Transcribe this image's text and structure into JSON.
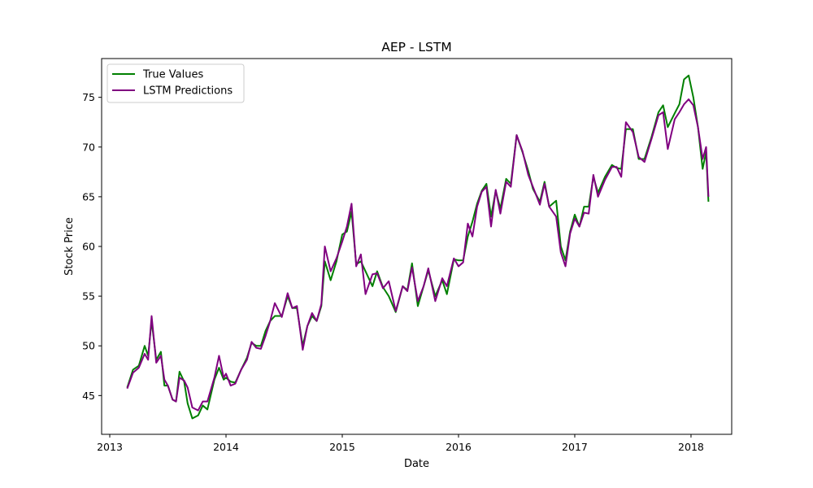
{
  "chart_data": {
    "type": "line",
    "title": "AEP - LSTM",
    "xlabel": "Date",
    "ylabel": "Stock Price",
    "xlim": [
      2012.93,
      2018.35
    ],
    "ylim": [
      41.1,
      78.9
    ],
    "xticks": [
      2013,
      2014,
      2015,
      2016,
      2017,
      2018
    ],
    "yticks": [
      45,
      50,
      55,
      60,
      65,
      70,
      75
    ],
    "grid": false,
    "legend_position": "top-left",
    "series": [
      {
        "name": "True Values",
        "color": "#008000",
        "points": [
          [
            2013.15,
            45.8
          ],
          [
            2013.2,
            47.6
          ],
          [
            2013.25,
            48.0
          ],
          [
            2013.3,
            50.0
          ],
          [
            2013.33,
            49.0
          ],
          [
            2013.36,
            52.5
          ],
          [
            2013.4,
            48.6
          ],
          [
            2013.44,
            49.4
          ],
          [
            2013.47,
            46.0
          ],
          [
            2013.5,
            46.0
          ],
          [
            2013.54,
            44.6
          ],
          [
            2013.57,
            44.4
          ],
          [
            2013.6,
            47.4
          ],
          [
            2013.64,
            46.4
          ],
          [
            2013.67,
            44.2
          ],
          [
            2013.71,
            42.7
          ],
          [
            2013.76,
            43.0
          ],
          [
            2013.8,
            44.0
          ],
          [
            2013.84,
            43.6
          ],
          [
            2013.9,
            46.6
          ],
          [
            2013.94,
            47.8
          ],
          [
            2013.98,
            46.6
          ],
          [
            2014.0,
            46.8
          ],
          [
            2014.04,
            46.4
          ],
          [
            2014.08,
            46.3
          ],
          [
            2014.13,
            47.6
          ],
          [
            2014.18,
            48.8
          ],
          [
            2014.22,
            50.3
          ],
          [
            2014.26,
            50.0
          ],
          [
            2014.3,
            50.0
          ],
          [
            2014.34,
            51.5
          ],
          [
            2014.38,
            52.5
          ],
          [
            2014.42,
            53.0
          ],
          [
            2014.48,
            53.0
          ],
          [
            2014.53,
            55.0
          ],
          [
            2014.57,
            53.8
          ],
          [
            2014.61,
            53.8
          ],
          [
            2014.66,
            50.0
          ],
          [
            2014.7,
            52.0
          ],
          [
            2014.74,
            53.0
          ],
          [
            2014.78,
            52.5
          ],
          [
            2014.82,
            54.0
          ],
          [
            2014.85,
            58.5
          ],
          [
            2014.9,
            56.6
          ],
          [
            2014.95,
            58.5
          ],
          [
            2015.0,
            61.2
          ],
          [
            2015.04,
            61.5
          ],
          [
            2015.08,
            63.5
          ],
          [
            2015.12,
            58.2
          ],
          [
            2015.16,
            58.5
          ],
          [
            2015.2,
            57.5
          ],
          [
            2015.26,
            56.0
          ],
          [
            2015.3,
            57.5
          ],
          [
            2015.35,
            55.9
          ],
          [
            2015.4,
            55.0
          ],
          [
            2015.46,
            53.4
          ],
          [
            2015.52,
            56.0
          ],
          [
            2015.56,
            55.6
          ],
          [
            2015.6,
            58.3
          ],
          [
            2015.65,
            54.0
          ],
          [
            2015.7,
            56.0
          ],
          [
            2015.74,
            57.6
          ],
          [
            2015.8,
            55.0
          ],
          [
            2015.86,
            56.6
          ],
          [
            2015.9,
            55.2
          ],
          [
            2015.96,
            58.7
          ],
          [
            2016.0,
            58.6
          ],
          [
            2016.04,
            58.6
          ],
          [
            2016.08,
            61.0
          ],
          [
            2016.12,
            62.5
          ],
          [
            2016.16,
            64.3
          ],
          [
            2016.2,
            65.6
          ],
          [
            2016.24,
            66.3
          ],
          [
            2016.28,
            63.0
          ],
          [
            2016.32,
            65.6
          ],
          [
            2016.36,
            63.8
          ],
          [
            2016.41,
            66.8
          ],
          [
            2016.45,
            66.3
          ],
          [
            2016.5,
            71.2
          ],
          [
            2016.55,
            69.5
          ],
          [
            2016.6,
            67.6
          ],
          [
            2016.64,
            65.8
          ],
          [
            2016.7,
            64.5
          ],
          [
            2016.74,
            66.5
          ],
          [
            2016.78,
            64.0
          ],
          [
            2016.84,
            64.6
          ],
          [
            2016.88,
            60.0
          ],
          [
            2016.92,
            58.6
          ],
          [
            2016.96,
            61.5
          ],
          [
            2017.0,
            63.2
          ],
          [
            2017.04,
            62.0
          ],
          [
            2017.08,
            64.0
          ],
          [
            2017.12,
            64.0
          ],
          [
            2017.16,
            67.0
          ],
          [
            2017.2,
            65.4
          ],
          [
            2017.26,
            67.0
          ],
          [
            2017.32,
            68.2
          ],
          [
            2017.36,
            67.9
          ],
          [
            2017.4,
            67.8
          ],
          [
            2017.44,
            71.8
          ],
          [
            2017.5,
            71.8
          ],
          [
            2017.55,
            68.8
          ],
          [
            2017.6,
            68.8
          ],
          [
            2017.66,
            71.0
          ],
          [
            2017.72,
            73.5
          ],
          [
            2017.76,
            74.2
          ],
          [
            2017.8,
            72.0
          ],
          [
            2017.86,
            73.4
          ],
          [
            2017.9,
            74.3
          ],
          [
            2017.94,
            76.8
          ],
          [
            2017.98,
            77.2
          ],
          [
            2018.02,
            75.0
          ],
          [
            2018.06,
            72.0
          ],
          [
            2018.1,
            67.8
          ],
          [
            2018.13,
            69.5
          ],
          [
            2018.15,
            64.5
          ]
        ]
      },
      {
        "name": "LSTM Predictions",
        "color": "#800080",
        "points": [
          [
            2013.15,
            45.7
          ],
          [
            2013.2,
            47.3
          ],
          [
            2013.25,
            47.8
          ],
          [
            2013.3,
            49.2
          ],
          [
            2013.33,
            48.6
          ],
          [
            2013.36,
            53.0
          ],
          [
            2013.4,
            48.3
          ],
          [
            2013.44,
            49.0
          ],
          [
            2013.47,
            46.6
          ],
          [
            2013.5,
            46.0
          ],
          [
            2013.54,
            44.6
          ],
          [
            2013.57,
            44.4
          ],
          [
            2013.6,
            46.8
          ],
          [
            2013.64,
            46.5
          ],
          [
            2013.67,
            45.8
          ],
          [
            2013.71,
            43.8
          ],
          [
            2013.76,
            43.5
          ],
          [
            2013.8,
            44.4
          ],
          [
            2013.84,
            44.4
          ],
          [
            2013.9,
            46.8
          ],
          [
            2013.94,
            49.0
          ],
          [
            2013.98,
            46.8
          ],
          [
            2014.0,
            47.2
          ],
          [
            2014.04,
            46.0
          ],
          [
            2014.08,
            46.2
          ],
          [
            2014.13,
            47.6
          ],
          [
            2014.18,
            48.6
          ],
          [
            2014.22,
            50.4
          ],
          [
            2014.26,
            49.8
          ],
          [
            2014.3,
            49.7
          ],
          [
            2014.34,
            51.0
          ],
          [
            2014.38,
            52.5
          ],
          [
            2014.42,
            54.3
          ],
          [
            2014.48,
            52.9
          ],
          [
            2014.53,
            55.3
          ],
          [
            2014.57,
            53.8
          ],
          [
            2014.61,
            54.0
          ],
          [
            2014.66,
            49.6
          ],
          [
            2014.7,
            52.0
          ],
          [
            2014.74,
            53.3
          ],
          [
            2014.78,
            52.5
          ],
          [
            2014.82,
            54.2
          ],
          [
            2014.85,
            60.0
          ],
          [
            2014.9,
            57.5
          ],
          [
            2014.95,
            58.8
          ],
          [
            2015.0,
            60.5
          ],
          [
            2015.04,
            62.0
          ],
          [
            2015.08,
            64.3
          ],
          [
            2015.12,
            58.0
          ],
          [
            2015.16,
            59.2
          ],
          [
            2015.2,
            55.2
          ],
          [
            2015.26,
            57.2
          ],
          [
            2015.3,
            57.3
          ],
          [
            2015.35,
            55.8
          ],
          [
            2015.4,
            56.5
          ],
          [
            2015.46,
            53.5
          ],
          [
            2015.52,
            56.0
          ],
          [
            2015.56,
            55.5
          ],
          [
            2015.6,
            57.9
          ],
          [
            2015.65,
            54.5
          ],
          [
            2015.7,
            56.0
          ],
          [
            2015.74,
            57.8
          ],
          [
            2015.8,
            54.5
          ],
          [
            2015.86,
            56.8
          ],
          [
            2015.9,
            56.0
          ],
          [
            2015.96,
            58.8
          ],
          [
            2016.0,
            58.0
          ],
          [
            2016.04,
            58.4
          ],
          [
            2016.08,
            62.3
          ],
          [
            2016.12,
            61.0
          ],
          [
            2016.16,
            64.0
          ],
          [
            2016.2,
            65.5
          ],
          [
            2016.24,
            66.0
          ],
          [
            2016.28,
            62.0
          ],
          [
            2016.32,
            65.7
          ],
          [
            2016.36,
            63.3
          ],
          [
            2016.41,
            66.5
          ],
          [
            2016.45,
            66.0
          ],
          [
            2016.5,
            71.2
          ],
          [
            2016.55,
            69.6
          ],
          [
            2016.6,
            67.2
          ],
          [
            2016.64,
            66.0
          ],
          [
            2016.7,
            64.2
          ],
          [
            2016.74,
            66.3
          ],
          [
            2016.78,
            64.0
          ],
          [
            2016.84,
            63.0
          ],
          [
            2016.88,
            59.4
          ],
          [
            2016.92,
            58.0
          ],
          [
            2016.96,
            61.3
          ],
          [
            2017.0,
            62.8
          ],
          [
            2017.04,
            62.0
          ],
          [
            2017.08,
            63.4
          ],
          [
            2017.12,
            63.3
          ],
          [
            2017.16,
            67.2
          ],
          [
            2017.2,
            65.0
          ],
          [
            2017.26,
            66.7
          ],
          [
            2017.32,
            68.0
          ],
          [
            2017.36,
            68.0
          ],
          [
            2017.4,
            67.0
          ],
          [
            2017.44,
            72.5
          ],
          [
            2017.5,
            71.5
          ],
          [
            2017.55,
            69.0
          ],
          [
            2017.6,
            68.5
          ],
          [
            2017.66,
            70.8
          ],
          [
            2017.72,
            73.2
          ],
          [
            2017.76,
            73.5
          ],
          [
            2017.8,
            69.8
          ],
          [
            2017.86,
            72.8
          ],
          [
            2017.9,
            73.5
          ],
          [
            2017.94,
            74.3
          ],
          [
            2017.98,
            74.8
          ],
          [
            2018.02,
            74.2
          ],
          [
            2018.06,
            72.0
          ],
          [
            2018.1,
            68.8
          ],
          [
            2018.13,
            70.0
          ],
          [
            2018.15,
            65.0
          ]
        ]
      }
    ]
  }
}
